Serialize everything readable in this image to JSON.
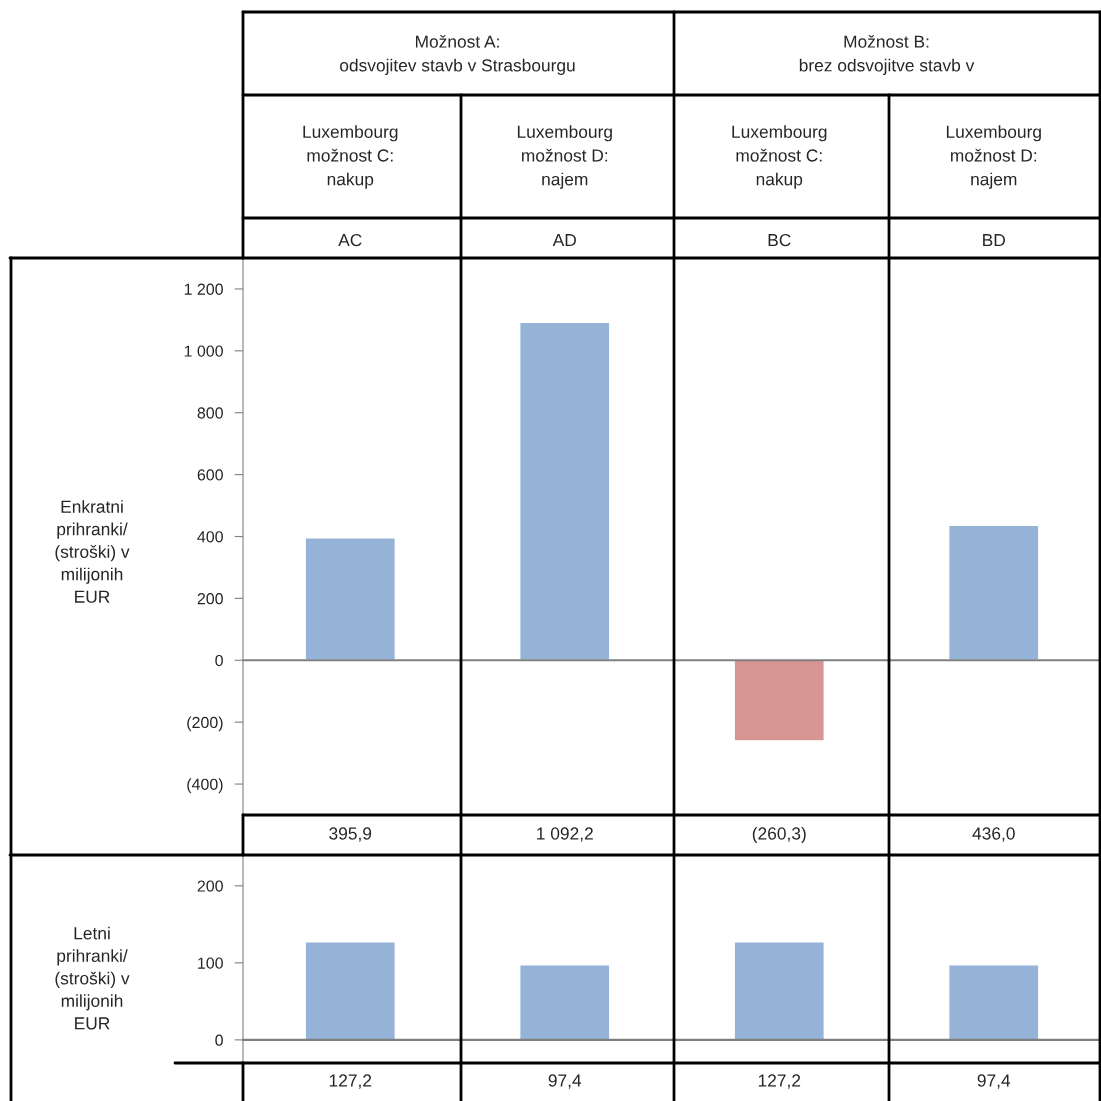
{
  "chart_data": [
    {
      "type": "bar",
      "categories": [
        "AC",
        "AD",
        "BC",
        "BD"
      ],
      "values": [
        395.9,
        1092.2,
        -260.3,
        436.0
      ],
      "colors": [
        "#95b3d7",
        "#95b3d7",
        "#d99594",
        "#95b3d7"
      ],
      "ylim": [
        -500,
        1300
      ],
      "yticks": [
        {
          "value": 1200,
          "label": "1 200"
        },
        {
          "value": 1000,
          "label": "1 000"
        },
        800,
        600,
        400,
        200,
        0,
        {
          "value": -200,
          "label": "(200)"
        },
        {
          "value": -400,
          "label": "(400)"
        }
      ],
      "ylabel": "Enkratni\nprihranki/\n(stroški) v\nmilijonih\nEUR",
      "value_labels": [
        "395,9",
        "1 092,2",
        "(260,3)",
        "436,0"
      ],
      "annotations": [
        "Možnost A:\nodsvojitev stavb v Strasbourgu",
        "Možnost B:\nbrez odsvojitve stavb v",
        "Luxembourg\nmožnost C:\nnakup",
        "Luxembourg\nmožnost D:\nnajem",
        "Luxembourg\nmožnost C:\nnakup",
        "Luxembourg\nmožnost D:\nnajem"
      ]
    },
    {
      "type": "bar",
      "categories": [
        null,
        null,
        null,
        null
      ],
      "values": [
        127.2,
        97.4,
        127.2,
        97.4
      ],
      "colors": [
        "#95b3d7",
        "#95b3d7",
        "#95b3d7",
        "#95b3d7"
      ],
      "ylim": [
        -30,
        240
      ],
      "yticks": [
        0,
        100,
        200
      ],
      "tick_labels": "y",
      "ylabel": "Letni\nprihranki/\n(stroški) v\nmilijonih\nEUR",
      "value_labels": [
        "127,2",
        "97,4",
        "127,2",
        "97,4"
      ]
    }
  ]
}
